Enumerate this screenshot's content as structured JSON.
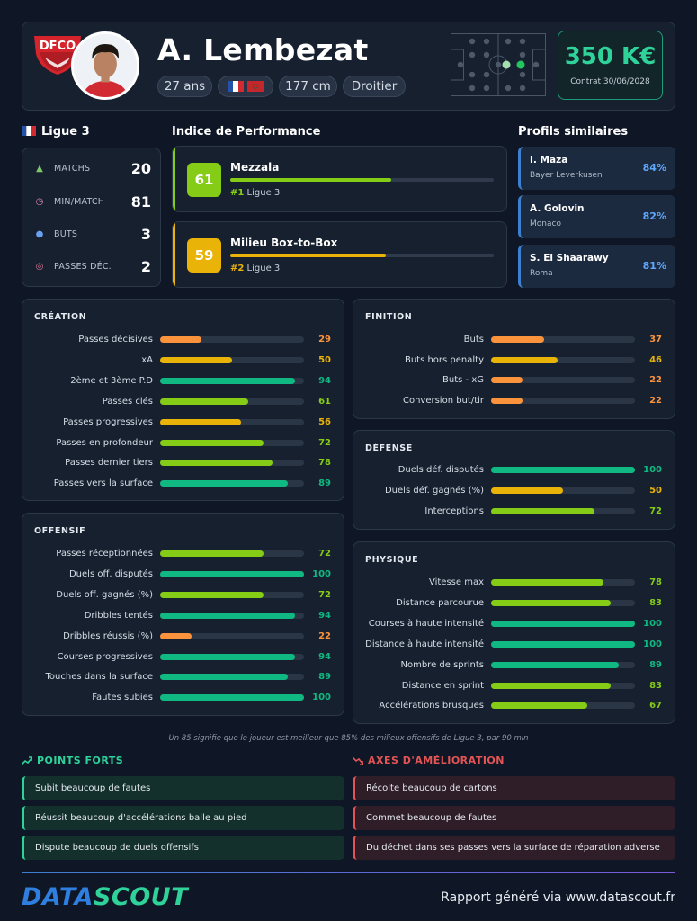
{
  "player": {
    "name": "A. Lembezat",
    "age": "27 ans",
    "height": "177 cm",
    "foot": "Droitier",
    "value": "350 K€",
    "contract": "Contrat 30/06/2028",
    "club_logo_text": "DFCO"
  },
  "league": {
    "name": "Ligue 3",
    "stats": [
      {
        "icon": "shirt-icon",
        "label": "MATCHS",
        "value": "20"
      },
      {
        "icon": "stopwatch-icon",
        "label": "MIN/MATCH",
        "value": "81"
      },
      {
        "icon": "ball-icon",
        "label": "BUTS",
        "value": "3"
      },
      {
        "icon": "target-icon",
        "label": "PASSES DÉC.",
        "value": "2"
      }
    ]
  },
  "performance": {
    "title": "Indice de Performance",
    "items": [
      {
        "score": "61",
        "role": "Mezzala",
        "rank_num": "#1",
        "rank_league": "Ligue 3",
        "level": 61,
        "color": "#84cc16"
      },
      {
        "score": "59",
        "role": "Milieu Box-to-Box",
        "rank_num": "#2",
        "rank_league": "Ligue 3",
        "level": 59,
        "color": "#eab308"
      }
    ]
  },
  "similar": {
    "title": "Profils similaires",
    "items": [
      {
        "name": "I. Maza",
        "club": "Bayer Leverkusen",
        "pct": "84%"
      },
      {
        "name": "A. Golovin",
        "club": "Monaco",
        "pct": "82%"
      },
      {
        "name": "S. El Shaarawy",
        "club": "Roma",
        "pct": "81%"
      }
    ]
  },
  "creation": {
    "title": "CRÉATION",
    "rows": [
      {
        "label": "Passes décisives",
        "value": 29
      },
      {
        "label": "xA",
        "value": 50
      },
      {
        "label": "2ème et 3ème P.D",
        "value": 94
      },
      {
        "label": "Passes clés",
        "value": 61
      },
      {
        "label": "Passes progressives",
        "value": 56
      },
      {
        "label": "Passes en profondeur",
        "value": 72
      },
      {
        "label": "Passes dernier tiers",
        "value": 78
      },
      {
        "label": "Passes vers la surface",
        "value": 89
      }
    ]
  },
  "offensif": {
    "title": "OFFENSIF",
    "rows": [
      {
        "label": "Passes réceptionnées",
        "value": 72
      },
      {
        "label": "Duels off. disputés",
        "value": 100
      },
      {
        "label": "Duels off. gagnés (%)",
        "value": 72
      },
      {
        "label": "Dribbles tentés",
        "value": 94
      },
      {
        "label": "Dribbles réussis (%)",
        "value": 22
      },
      {
        "label": "Courses progressives",
        "value": 94
      },
      {
        "label": "Touches dans la surface",
        "value": 89
      },
      {
        "label": "Fautes subies",
        "value": 100
      }
    ]
  },
  "finition": {
    "title": "FINITION",
    "rows": [
      {
        "label": "Buts",
        "value": 37
      },
      {
        "label": "Buts hors penalty",
        "value": 46
      },
      {
        "label": "Buts - xG",
        "value": 22
      },
      {
        "label": "Conversion but/tir",
        "value": 22
      }
    ]
  },
  "defense": {
    "title": "DÉFENSE",
    "rows": [
      {
        "label": "Duels déf. disputés",
        "value": 100
      },
      {
        "label": "Duels déf. gagnés (%)",
        "value": 50
      },
      {
        "label": "Interceptions",
        "value": 72
      }
    ]
  },
  "physique": {
    "title": "PHYSIQUE",
    "rows": [
      {
        "label": "Vitesse max",
        "value": 78
      },
      {
        "label": "Distance parcourue",
        "value": 83
      },
      {
        "label": "Courses à haute intensité",
        "value": 100
      },
      {
        "label": "Distance à haute intensité",
        "value": 100
      },
      {
        "label": "Nombre de sprints",
        "value": 89
      },
      {
        "label": "Distance en sprint",
        "value": 83
      },
      {
        "label": "Accélérations brusques",
        "value": 67
      }
    ]
  },
  "footnote": "Un 85 signifie que le joueur est meilleur que 85% des milieux offensifs de Ligue 3, par 90 min",
  "strengths": {
    "title": "POINTS FORTS",
    "icon": "trending-up-icon",
    "items": [
      "Subit beaucoup de fautes",
      "Réussit beaucoup d'accélérations balle au pied",
      "Dispute beaucoup de duels offensifs"
    ]
  },
  "improvements": {
    "title": "AXES D'AMÉLIORATION",
    "icon": "trending-down-icon",
    "items": [
      "Récolte beaucoup de cartons",
      "Commet beaucoup de fautes",
      "Du déchet dans ses passes vers la surface de réparation adverse"
    ]
  },
  "footer": {
    "brand_a": "DATA",
    "brand_b": "SCOUT",
    "report": "Rapport généré via www.datascout.fr"
  },
  "colors": {
    "teal": "#2fd39a",
    "green": "#10b981",
    "lime": "#84cc16",
    "yellow": "#eab308",
    "orange": "#fb923c",
    "red": "#e45454",
    "blue": "#5fa8ff"
  }
}
